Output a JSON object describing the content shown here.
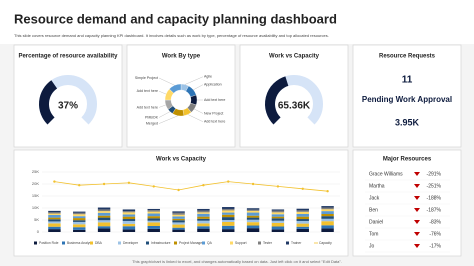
{
  "header": {
    "title": "Resource demand and capacity planning dashboard",
    "subtitle": "This slide covers resource demand and capacity planning KPI dashboard. It involves details such as work by type, percentage of resource availability and top allocated resources."
  },
  "chart_data": [
    {
      "type": "gauge",
      "title": "Percentage of resource availability",
      "value": 37,
      "value_label": "37%",
      "ylim": [
        0,
        100
      ],
      "colors": [
        "#0d1b3e",
        "#d6e4f7"
      ]
    },
    {
      "type": "pie",
      "title": "Work By type",
      "categories": [
        "Agile",
        "Application",
        "Add text here",
        "New Project",
        "Add text here",
        "Merged",
        "PMBOK",
        "Add text here",
        "Add text here",
        "Simple Project"
      ],
      "values": [
        8,
        12,
        10,
        9,
        8,
        12,
        6,
        10,
        12,
        13
      ],
      "colors": [
        "#9dc3e6",
        "#2e75b6",
        "#0d1b3e",
        "#7f7f7f",
        "#f2c12e",
        "#bf9000",
        "#1f4e79",
        "#a6a6a6",
        "#ffd966",
        "#5b9bd5"
      ]
    },
    {
      "type": "gauge",
      "title": "Work vs Capacity",
      "value": 65360,
      "value_label": "65.36K",
      "ylim": [
        0,
        150000
      ],
      "colors": [
        "#0d1b3e",
        "#d6e4f7"
      ]
    },
    {
      "type": "combo",
      "title": "Work vs Capacity",
      "categories": [
        null,
        null,
        null,
        null,
        null,
        null,
        null,
        null,
        null,
        null,
        null,
        null
      ],
      "ylim": [
        0,
        25000
      ],
      "yticks": [
        0,
        {
          "value": 5000,
          "label": "5K"
        },
        {
          "value": 10000,
          "label": "10K"
        },
        {
          "value": 15000,
          "label": "15K"
        },
        {
          "value": 20000,
          "label": "20K"
        },
        {
          "value": 25000,
          "label": "25K"
        }
      ],
      "series": [
        {
          "name": "Position Role",
          "color": "#0d1b3e",
          "values": [
            1200,
            900,
            1500,
            1100,
            1300,
            1000,
            1400,
            1200,
            1600,
            1100,
            1300,
            1500
          ]
        },
        {
          "name": "Business Analyst",
          "color": "#2e75b6",
          "values": [
            1000,
            1100,
            900,
            1300,
            1200,
            800,
            1000,
            1400,
            1100,
            1200,
            900,
            1300
          ]
        },
        {
          "name": "DBA",
          "color": "#f2c12e",
          "values": [
            1400,
            1200,
            1600,
            1000,
            1500,
            1300,
            1200,
            1600,
            1400,
            1500,
            1300,
            1700
          ]
        },
        {
          "name": "Developer",
          "color": "#9dc3e6",
          "values": [
            800,
            1000,
            900,
            1200,
            700,
            900,
            1100,
            800,
            1000,
            900,
            1100,
            1000
          ]
        },
        {
          "name": "Infrastructure",
          "color": "#1f4e79",
          "values": [
            900,
            700,
            1100,
            800,
            1000,
            900,
            800,
            1200,
            900,
            1000,
            800,
            1100
          ]
        },
        {
          "name": "Project Manager",
          "color": "#bf9000",
          "values": [
            700,
            900,
            800,
            1000,
            900,
            600,
            900,
            1000,
            800,
            700,
            1000,
            900
          ]
        },
        {
          "name": "QA",
          "color": "#5b9bd5",
          "values": [
            1100,
            800,
            1200,
            900,
            1100,
            1000,
            1200,
            900,
            1300,
            1000,
            1100,
            1200
          ]
        },
        {
          "name": "Support",
          "color": "#ffd966",
          "values": [
            600,
            800,
            700,
            900,
            800,
            700,
            600,
            900,
            700,
            800,
            900,
            800
          ]
        },
        {
          "name": "Tester",
          "color": "#7f7f7f",
          "values": [
            500,
            600,
            700,
            500,
            600,
            800,
            700,
            600,
            500,
            700,
            600,
            700
          ]
        },
        {
          "name": "Trainer",
          "color": "#203864",
          "values": [
            600,
            500,
            800,
            700,
            500,
            600,
            700,
            800,
            600,
            500,
            700,
            600
          ]
        },
        {
          "name": "Capacity",
          "color": "#f2c12e",
          "type": "line",
          "values": [
            21000,
            19500,
            20000,
            20500,
            19000,
            17500,
            19500,
            21000,
            20000,
            19000,
            18000,
            17000
          ]
        }
      ]
    }
  ],
  "requests": {
    "title": "Resource Requests",
    "count": 11,
    "label": "Pending Work Approval",
    "value": "3.95K"
  },
  "major_resources": {
    "title": "Major Resources",
    "rows": [
      [
        "Grace Williams",
        "-291%"
      ],
      [
        "Martha",
        "-251%"
      ],
      [
        "Jack",
        "-188%"
      ],
      [
        "Ben",
        "-187%"
      ],
      [
        "Daniel",
        "-83%"
      ],
      [
        "Tom",
        "-76%"
      ],
      [
        "Jo",
        "-17%"
      ]
    ]
  },
  "footer": "This graph/chart is linked to excel, and changes automatically based on data. Just left click on it and select \"Edit Data\"."
}
